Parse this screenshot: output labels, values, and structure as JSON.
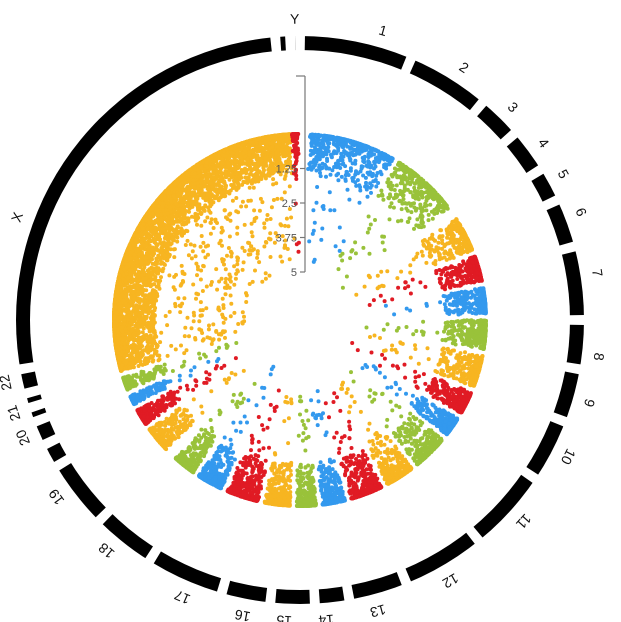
{
  "chart_data": {
    "type": "scatter",
    "layout": "circular manhattan plot",
    "chromosomes": [
      "1",
      "2",
      "3",
      "4",
      "5",
      "6",
      "7",
      "8",
      "9",
      "10",
      "11",
      "12",
      "13",
      "14",
      "15",
      "16",
      "17",
      "18",
      "19",
      "20",
      "21",
      "22",
      "X",
      "Y"
    ],
    "radial_axis": {
      "ticks": [
        "1.25",
        "2.5",
        "3.75",
        "5"
      ],
      "range": [
        0,
        5
      ]
    },
    "series_colors": [
      "#3399ee",
      "#99c23a",
      "#f7b521",
      "#e01b24"
    ],
    "ideogram_color": "#000000",
    "point_counts_per_chromosome": [
      520,
      430,
      300,
      300,
      320,
      300,
      320,
      320,
      300,
      300,
      320,
      360,
      300,
      300,
      320,
      360,
      300,
      260,
      300,
      280,
      160,
      180,
      5200,
      90
    ],
    "legend": "none",
    "grid": false
  }
}
